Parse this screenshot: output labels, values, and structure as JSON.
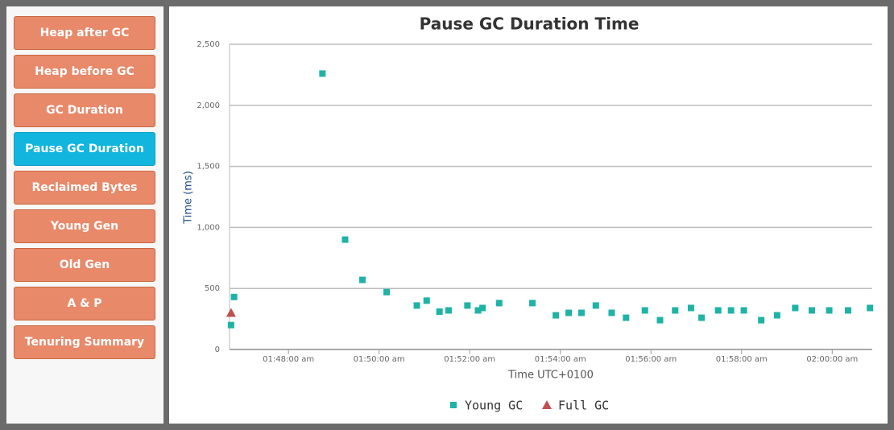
{
  "sidebar": {
    "buttons": [
      "Heap after GC",
      "Heap before GC",
      "GC Duration",
      "Pause GC Duration",
      "Reclaimed Bytes",
      "Young Gen",
      "Old Gen",
      "A & P",
      "Tenuring Summary"
    ],
    "active": 3
  },
  "chart_data": {
    "type": "scatter",
    "title": "Pause GC Duration Time",
    "xlabel": "Time UTC+0100",
    "ylabel": "Time (ms)",
    "xlim": [
      "01:46:42",
      "02:00:53"
    ],
    "xticks": [
      {
        "value": "01:48:00",
        "label": "01:48:00 am"
      },
      {
        "value": "01:50:00",
        "label": "01:50:00 am"
      },
      {
        "value": "01:52:00",
        "label": "01:52:00 am"
      },
      {
        "value": "01:54:00",
        "label": "01:54:00 am"
      },
      {
        "value": "01:56:00",
        "label": "01:56:00 am"
      },
      {
        "value": "01:58:00",
        "label": "01:58:00 am"
      },
      {
        "value": "02:00:00",
        "label": "02:00:00 am"
      }
    ],
    "ylim": [
      0,
      2500
    ],
    "yticks": [
      0,
      500,
      {
        "value": 1000,
        "label": "1,000"
      },
      {
        "value": 1500,
        "label": "1,500"
      },
      {
        "value": 2000,
        "label": "2,000"
      },
      {
        "value": 2500,
        "label": "2,500"
      }
    ],
    "grid": true,
    "series": [
      {
        "name": "Young GC",
        "color": "#1fb3a6",
        "marker": "square",
        "x": [
          "01:46:44",
          "01:46:48",
          "01:48:45",
          "01:49:15",
          "01:49:38",
          "01:50:10",
          "01:50:50",
          "01:51:03",
          "01:51:20",
          "01:51:32",
          "01:51:57",
          "01:52:11",
          "01:52:17",
          "01:52:39",
          "01:53:23",
          "01:53:54",
          "01:54:11",
          "01:54:28",
          "01:54:47",
          "01:55:08",
          "01:55:27",
          "01:55:52",
          "01:56:12",
          "01:56:32",
          "01:56:53",
          "01:57:07",
          "01:57:29",
          "01:57:46",
          "01:58:03",
          "01:58:26",
          "01:58:47",
          "01:59:11",
          "01:59:33",
          "01:59:56",
          "02:00:21",
          "02:00:50"
        ],
        "values": [
          200,
          430,
          2260,
          900,
          570,
          470,
          360,
          400,
          310,
          320,
          360,
          320,
          340,
          380,
          380,
          280,
          300,
          300,
          360,
          300,
          260,
          320,
          240,
          320,
          340,
          260,
          320,
          320,
          320,
          240,
          280,
          340,
          320,
          320,
          320,
          340
        ]
      },
      {
        "name": "Full GC",
        "color": "#c0504d",
        "marker": "triangle",
        "x": [
          "01:46:44"
        ],
        "values": [
          300
        ]
      }
    ]
  }
}
